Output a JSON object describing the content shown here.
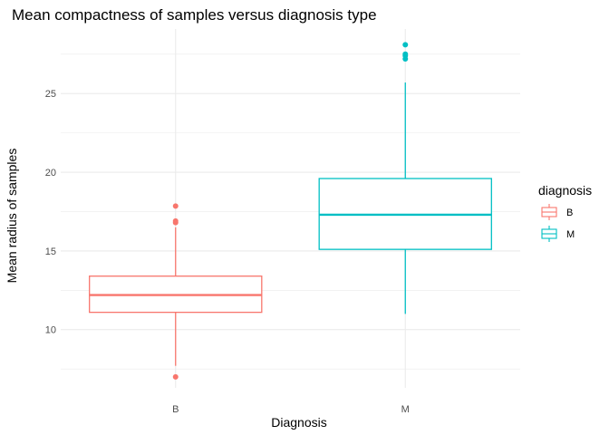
{
  "chart_data": {
    "type": "boxplot",
    "title": "Mean compactness of samples versus diagnosis type",
    "xlabel": "Diagnosis",
    "ylabel": "Mean radius of samples",
    "ylim": [
      6.3,
      29.1
    ],
    "yticks": [
      10,
      15,
      20,
      25
    ],
    "grid": true,
    "legend": {
      "title": "diagnosis",
      "placement": "right",
      "entries": [
        {
          "label": "B",
          "color": "#F8766D"
        },
        {
          "label": "M",
          "color": "#00BFC4"
        }
      ]
    },
    "categories": [
      "B",
      "M"
    ],
    "boxes": [
      {
        "category": "B",
        "color": "#F8766D",
        "whisker_low": 7.7,
        "q1": 11.1,
        "median": 12.2,
        "q3": 13.4,
        "whisker_high": 16.5,
        "outliers": [
          7.0,
          16.8,
          16.9,
          17.85
        ]
      },
      {
        "category": "M",
        "color": "#00BFC4",
        "whisker_low": 11.0,
        "q1": 15.1,
        "median": 17.3,
        "q3": 19.6,
        "whisker_high": 25.7,
        "outliers": [
          27.2,
          27.4,
          27.5,
          28.1
        ]
      }
    ]
  }
}
